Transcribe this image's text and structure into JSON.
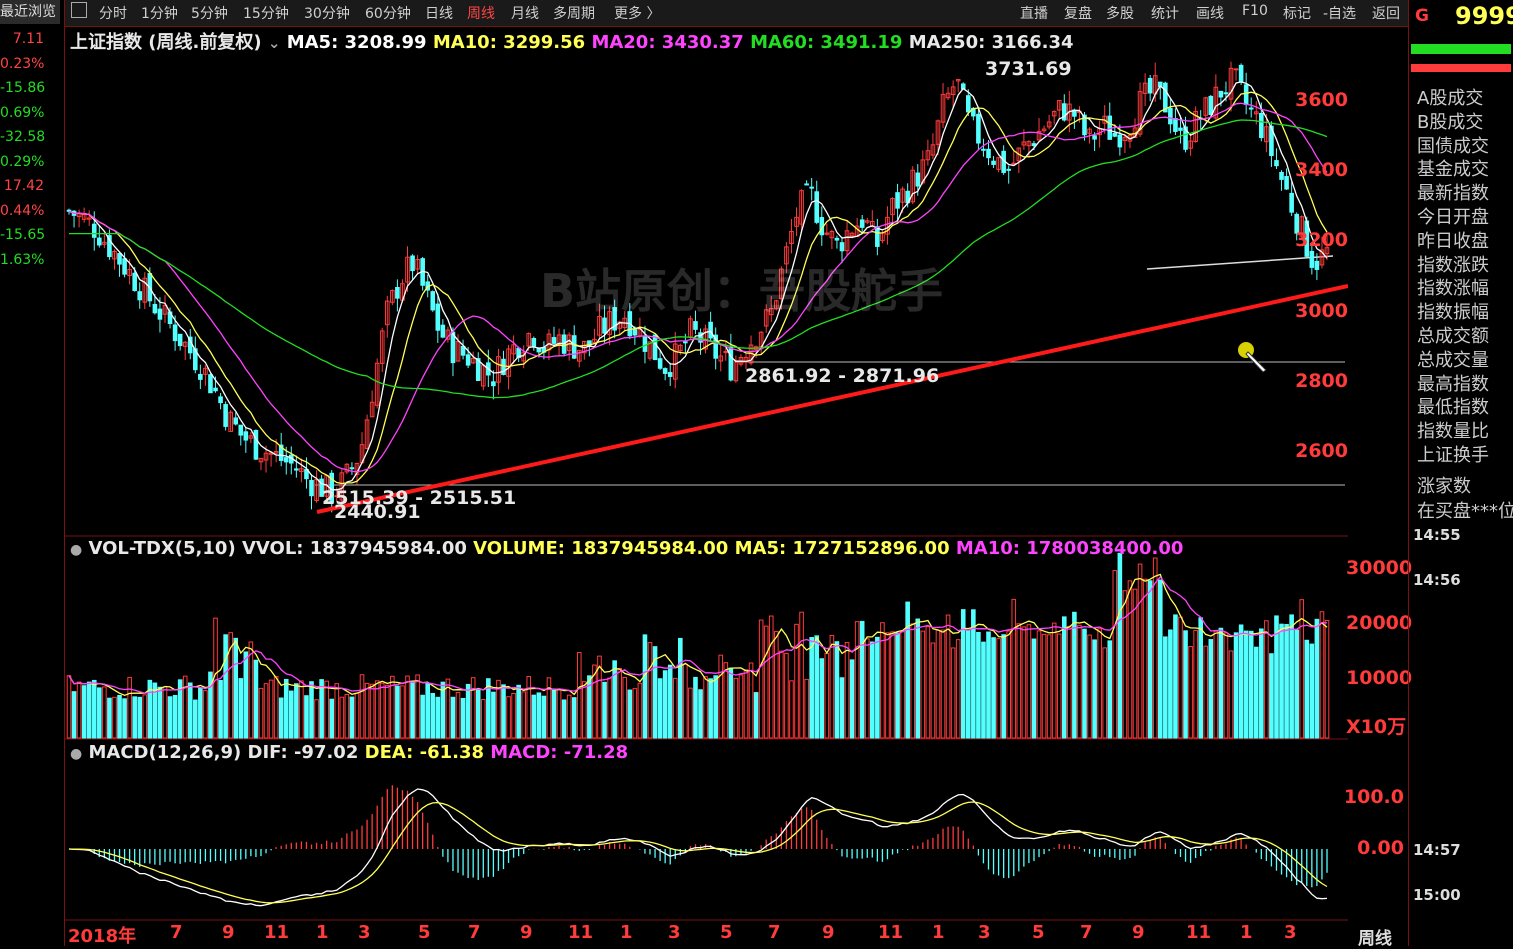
{
  "left_strip": {
    "header": "最近浏览",
    "values": [
      {
        "text": "7.11",
        "color": "#ff4444"
      },
      {
        "text": "0.23%",
        "color": "#ff4444"
      },
      {
        "text": "-15.86",
        "color": "#22dd22"
      },
      {
        "text": "0.69%",
        "color": "#22dd22"
      },
      {
        "text": "-32.58",
        "color": "#22dd22"
      },
      {
        "text": "0.29%",
        "color": "#22dd22"
      },
      {
        "text": "17.42",
        "color": "#ff4444"
      },
      {
        "text": "0.44%",
        "color": "#ff4444"
      },
      {
        "text": "-15.65",
        "color": "#22dd22"
      },
      {
        "text": "1.63%",
        "color": "#22dd22"
      }
    ]
  },
  "toolbar": {
    "periods": [
      "分时",
      "1分钟",
      "5分钟",
      "15分钟",
      "30分钟",
      "60分钟",
      "日线",
      "周线",
      "月线",
      "多周期",
      "更多 〉"
    ],
    "active": "周线",
    "right_buttons": [
      "直播",
      "复盘",
      "多股",
      "统计",
      "画线",
      "F10",
      "标记",
      "-自选",
      "返回"
    ]
  },
  "main_info": {
    "title": "上证指数 (周线.前复权)",
    "ma5": "MA5: 3208.99",
    "ma10": "MA10: 3299.56",
    "ma20": "MA20: 3430.37",
    "ma60": "MA60: 3491.19",
    "ma250": "MA250: 3166.34"
  },
  "vol_info": {
    "title": "VOL-TDX(5,10)",
    "vvol": "VVOL: 1837945984.00",
    "volume": "VOLUME: 1837945984.00",
    "ma5": "MA5: 1727152896.00",
    "ma10": "MA10: 1780038400.00"
  },
  "macd_info": {
    "title": "MACD(12,26,9)",
    "dif": "DIF: -97.02",
    "dea": "DEA: -61.38",
    "macd": "MACD: -71.28"
  },
  "watermark": "B站原创：吾股舵手",
  "annotations": {
    "high": "3731.69",
    "mid": "2861.92 - 2871.96",
    "low1": "2515.39 - 2515.51",
    "low2": "2440.91"
  },
  "price_axis": [
    "3600",
    "3400",
    "3200",
    "3000",
    "2800",
    "2600"
  ],
  "vol_axis": [
    "30000",
    "20000",
    "10000",
    "X10万"
  ],
  "macd_axis": [
    "100.0",
    "0.00"
  ],
  "x_axis": [
    "2018年",
    "7",
    "9",
    "11",
    "1",
    "3",
    "5",
    "7",
    "9",
    "11",
    "1",
    "3",
    "5",
    "7",
    "9",
    "11",
    "1",
    "3",
    "5",
    "7",
    "9",
    "11",
    "1",
    "3"
  ],
  "period_label": "周线",
  "right_panel": {
    "code_prefix": "G",
    "code": "9999",
    "items": [
      "A股成交",
      "B股成交",
      "国债成交",
      "基金成交",
      "最新指数",
      "今日开盘",
      "昨日收盘",
      "指数涨跌",
      "指数涨幅",
      "指数振幅",
      "总成交额",
      "总成交量",
      "最高指数",
      "最低指数",
      "指数量比",
      "上证换手",
      "涨家数",
      "在买盘***位"
    ],
    "times": [
      "14:55",
      "14:56",
      "14:57",
      "15:00"
    ]
  },
  "colors": {
    "up": "#ff3b3b",
    "down": "#54ffff",
    "ma5": "#ffffff",
    "ma10": "#ffff55",
    "ma20": "#ff44ff",
    "ma60": "#22dd22",
    "ma250": "#ffffff",
    "trend": "#ff1a1a"
  },
  "chart_data": {
    "type": "candlestick",
    "title": "上证指数 (周线.前复权)",
    "ylim": [
      2400,
      3750
    ],
    "key_points": [
      {
        "label": "3731.69",
        "value": 3731.69
      },
      {
        "label": "2861.92 - 2871.96",
        "value": 2866
      },
      {
        "label": "2515.39 - 2515.51",
        "value": 2515.5
      },
      {
        "label": "2440.91",
        "value": 2440.91
      }
    ],
    "close_path": [
      3300,
      3280,
      3250,
      3200,
      3150,
      3100,
      3050,
      3000,
      2950,
      2900,
      2850,
      2780,
      2700,
      2650,
      2620,
      2600,
      2580,
      2560,
      2520,
      2500,
      2480,
      2530,
      2600,
      2800,
      3000,
      3100,
      3150,
      3050,
      2950,
      2900,
      2880,
      2850,
      2820,
      2880,
      2920,
      2950,
      2900,
      2930,
      2910,
      2900,
      2950,
      2980,
      3000,
      2950,
      2900,
      2850,
      2880,
      2950,
      2920,
      2880,
      2850,
      2900,
      2950,
      3000,
      3150,
      3300,
      3350,
      3250,
      3200,
      3250,
      3280,
      3200,
      3300,
      3350,
      3400,
      3450,
      3600,
      3680,
      3550,
      3500,
      3450,
      3420,
      3480,
      3520,
      3560,
      3600,
      3580,
      3500,
      3550,
      3520,
      3550,
      3620,
      3650,
      3600,
      3500,
      3550,
      3600,
      3650,
      3680,
      3600,
      3550,
      3450,
      3350,
      3250,
      3150,
      3180
    ]
  }
}
